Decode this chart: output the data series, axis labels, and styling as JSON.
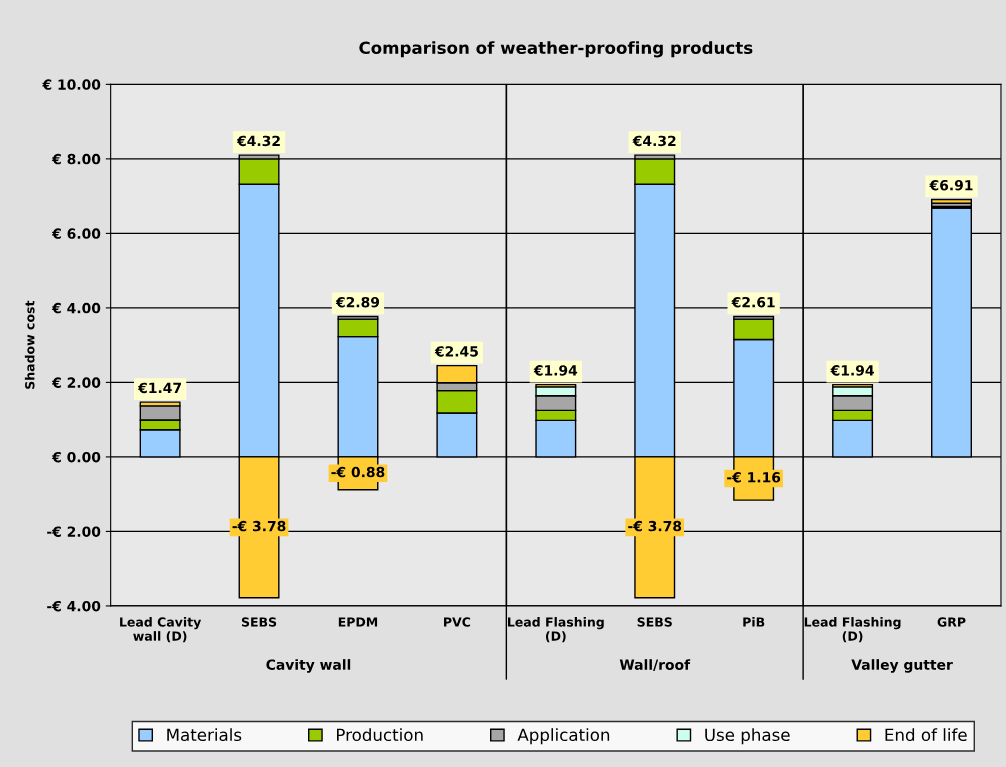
{
  "chart_data": {
    "type": "bar",
    "title": "Comparison of weather-proofing products",
    "ylabel": "Shadow cost",
    "categories": [
      "Lead Cavity\nwall (D)",
      "SEBS",
      "EPDM",
      "PVC",
      "Lead Flashing\n(D)",
      "SEBS",
      "PiB",
      "Lead Flashing\n(D)",
      "GRP"
    ],
    "stacked": true,
    "series": [
      {
        "name": "Materials",
        "color": "#99ccff",
        "values": [
          0.73,
          7.32,
          3.23,
          1.18,
          0.98,
          7.32,
          3.15,
          0.98,
          6.68
        ]
      },
      {
        "name": "Production",
        "color": "#99cc00",
        "values": [
          0.26,
          0.68,
          0.47,
          0.6,
          0.27,
          0.68,
          0.55,
          0.27,
          0.04
        ]
      },
      {
        "name": "Application",
        "color": "#a6a6a6",
        "values": [
          0.38,
          0.1,
          0.07,
          0.21,
          0.39,
          0.1,
          0.07,
          0.39,
          0.09
        ]
      },
      {
        "name": "Use phase",
        "color": "#ccffee",
        "values": [
          null,
          0,
          0,
          0,
          0.24,
          0,
          0,
          0.24,
          0
        ]
      },
      {
        "name": "End of life",
        "color": "#ffcc33",
        "values": [
          0.1,
          -3.78,
          -0.88,
          0.46,
          0.06,
          -3.78,
          -1.16,
          0.06,
          0.1
        ],
        "value_labels": [
          null,
          "-€ 3.78",
          "-€ 0.88",
          null,
          null,
          "-€ 3.78",
          "-€ 1.16",
          null,
          null
        ]
      }
    ],
    "totals": [
      "€1.47",
      "€4.32",
      "€2.89",
      "€2.45",
      "€1.94",
      "€4.32",
      "€2.61",
      "€1.94",
      "€6.91"
    ],
    "ylim": [
      -4,
      10
    ],
    "yticks": [
      {
        "value": -4,
        "label": "-€ 4.00"
      },
      {
        "value": -2,
        "label": "-€ 2.00"
      },
      {
        "value": 0,
        "label": "€ 0.00"
      },
      {
        "value": 2,
        "label": "€ 2.00"
      },
      {
        "value": 4,
        "label": "€ 4.00"
      },
      {
        "value": 6,
        "label": "€ 6.00"
      },
      {
        "value": 8,
        "label": "€ 8.00"
      },
      {
        "value": 10,
        "label": "€ 10.00"
      }
    ],
    "grid": "y",
    "legend": "bottom",
    "annotations": [
      "Cavity wall",
      "Wall/roof",
      "Valley gutter"
    ]
  }
}
